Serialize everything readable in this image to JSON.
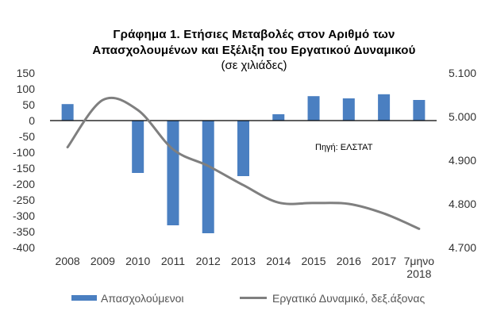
{
  "chart_data": {
    "type": "bar",
    "title_line1": "Γράφημα 1. Ετήσιες Μεταβολές στον Αριθμό των",
    "title_line2": "Απασχολουμένων και Εξέλιξη του Εργατικού Δυναμικού",
    "subtitle": "(σε χιλιάδες)",
    "source_note": "Πηγή: ΕΛΣΤΑΤ",
    "categories": [
      "2008",
      "2009",
      "2010",
      "2011",
      "2012",
      "2013",
      "2014",
      "2015",
      "2016",
      "2017",
      "7μηνο 2018"
    ],
    "series": [
      {
        "name": "Απασχολούμενοι",
        "kind": "bar",
        "axis": "left",
        "color": "#4a7fc1",
        "values": [
          52,
          null,
          -165,
          -330,
          -355,
          -175,
          20,
          77,
          70,
          83,
          65
        ]
      },
      {
        "name": "Εργατικό Δυναμικό, δεξ.άξονας",
        "kind": "line",
        "axis": "right",
        "color": "#7f7f7f",
        "values": [
          4930,
          5038,
          5015,
          4925,
          4887,
          4843,
          4803,
          4802,
          4800,
          4778,
          4743
        ]
      }
    ],
    "y_left": {
      "min": -400,
      "max": 150,
      "ticks": [
        "150",
        "100",
        "50",
        "0",
        "-50",
        "-100",
        "-150",
        "-200",
        "-250",
        "-300",
        "-350",
        "-400"
      ]
    },
    "y_right": {
      "min": 4700,
      "max": 5100,
      "ticks": [
        "5.100",
        "5.000",
        "4.900",
        "4.800",
        "4.700"
      ]
    },
    "legend_position": "bottom"
  }
}
